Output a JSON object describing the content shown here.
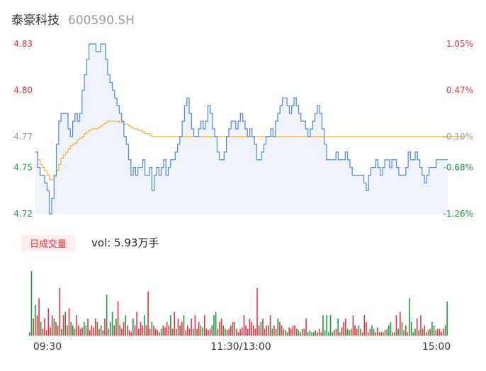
{
  "header": {
    "name": "泰豪科技",
    "code": "600590.SH"
  },
  "volume_panel": {
    "tag": "日成交量",
    "label": "vol: 5.93万手"
  },
  "colors": {
    "price": "#4a86e8",
    "avg": "#f0b33c",
    "up": "#e5323e",
    "down": "#1a9a3a",
    "neutral": "#999999",
    "grid": "#f0f3fa"
  },
  "chart_data": [
    {
      "type": "line",
      "title": "",
      "ylim": [
        4.72,
        4.83
      ],
      "y_ticks_left": [
        "4.83",
        "4.80",
        "4.77",
        "4.75",
        "4.72"
      ],
      "y_ticks_right": [
        "1.05%",
        "0.47%",
        "-0.10%",
        "-0.68%",
        "-1.26%"
      ],
      "x_ticks": [
        "09:30",
        "11:30/13:00",
        "15:00"
      ],
      "series": [
        {
          "values": [
            4.76,
            4.75,
            4.745,
            4.745,
            4.74,
            4.735,
            4.72,
            4.73,
            4.745,
            4.765,
            4.78,
            4.785,
            4.785,
            4.785,
            4.775,
            4.77,
            4.78,
            4.785,
            4.78,
            4.785,
            4.8,
            4.81,
            4.82,
            4.83,
            4.83,
            4.83,
            4.825,
            4.825,
            4.83,
            4.83,
            4.82,
            4.81,
            4.805,
            4.8,
            4.795,
            4.79,
            4.785,
            4.78,
            4.77,
            4.765,
            4.755,
            4.745,
            4.75,
            4.745,
            4.75,
            4.75,
            4.755,
            4.745,
            4.745,
            4.75,
            4.735,
            4.745,
            4.75,
            4.745,
            4.75,
            4.755,
            4.745,
            4.75,
            4.755,
            4.755,
            4.76,
            4.765,
            4.77,
            4.78,
            4.79,
            4.795,
            4.785,
            4.775,
            4.77,
            4.77,
            4.775,
            4.78,
            4.775,
            4.78,
            4.79,
            4.785,
            4.775,
            4.77,
            4.76,
            4.755,
            4.755,
            4.76,
            4.77,
            4.775,
            4.78,
            4.78,
            4.775,
            4.78,
            4.785,
            4.78,
            4.775,
            4.77,
            4.775,
            4.77,
            4.765,
            4.755,
            4.755,
            4.76,
            4.765,
            4.77,
            4.77,
            4.775,
            4.77,
            4.78,
            4.785,
            4.79,
            4.795,
            4.795,
            4.79,
            4.785,
            4.79,
            4.795,
            4.79,
            4.785,
            4.78,
            4.78,
            4.775,
            4.77,
            4.775,
            4.78,
            4.785,
            4.79,
            4.785,
            4.775,
            4.765,
            4.755,
            4.755,
            4.755,
            4.755,
            4.76,
            4.755,
            4.755,
            4.755,
            4.76,
            4.755,
            4.75,
            4.745,
            4.745,
            4.745,
            4.745,
            4.745,
            4.74,
            4.735,
            4.745,
            4.75,
            4.75,
            4.755,
            4.75,
            4.745,
            4.75,
            4.755,
            4.755,
            4.75,
            4.755,
            4.755,
            4.75,
            4.745,
            4.745,
            4.745,
            4.75,
            4.76,
            4.755,
            4.755,
            4.76,
            4.755,
            4.75,
            4.745,
            4.74,
            4.745,
            4.75,
            4.75,
            4.75,
            4.755,
            4.755,
            4.755,
            4.755,
            4.755,
            4.755
          ]
        },
        {
          "values": [
            4.76,
            4.755,
            4.752,
            4.75,
            4.748,
            4.745,
            4.742,
            4.742,
            4.744,
            4.748,
            4.752,
            4.756,
            4.758,
            4.76,
            4.762,
            4.764,
            4.765,
            4.766,
            4.768,
            4.769,
            4.77,
            4.772,
            4.773,
            4.774,
            4.775,
            4.775,
            4.775,
            4.776,
            4.777,
            4.778,
            4.779,
            4.78,
            4.78,
            4.78,
            4.78,
            4.78,
            4.779,
            4.779,
            4.778,
            4.778,
            4.777,
            4.776,
            4.775,
            4.775,
            4.774,
            4.774,
            4.773,
            4.772,
            4.772,
            4.771,
            4.77,
            4.77,
            4.77,
            4.77,
            4.77,
            4.77,
            4.77,
            4.77,
            4.77,
            4.77,
            4.77,
            4.77,
            4.77,
            4.77,
            4.77,
            4.77,
            4.77,
            4.77,
            4.77,
            4.77,
            4.77,
            4.77,
            4.77,
            4.77,
            4.77,
            4.77,
            4.77,
            4.77,
            4.77,
            4.77,
            4.77,
            4.77,
            4.77,
            4.77,
            4.77,
            4.77,
            4.77,
            4.77,
            4.77,
            4.77,
            4.77,
            4.77,
            4.77,
            4.77,
            4.77,
            4.77,
            4.77,
            4.77,
            4.77,
            4.77,
            4.77,
            4.77,
            4.77,
            4.77,
            4.77,
            4.77,
            4.77,
            4.77,
            4.77,
            4.77,
            4.77,
            4.77,
            4.77,
            4.77,
            4.77,
            4.77,
            4.77,
            4.77,
            4.77,
            4.77,
            4.77,
            4.77,
            4.77,
            4.77,
            4.77,
            4.77,
            4.77,
            4.77,
            4.77,
            4.77,
            4.77,
            4.77,
            4.77,
            4.77,
            4.77,
            4.77,
            4.77,
            4.77,
            4.77,
            4.77,
            4.77,
            4.77,
            4.77,
            4.77,
            4.77,
            4.77,
            4.77,
            4.77,
            4.77,
            4.77,
            4.77,
            4.77,
            4.77,
            4.77,
            4.77,
            4.77,
            4.77,
            4.77,
            4.77,
            4.77,
            4.77,
            4.77,
            4.77,
            4.77,
            4.77,
            4.77,
            4.77,
            4.77,
            4.77,
            4.77,
            4.77,
            4.77,
            4.77,
            4.77,
            4.77,
            4.77,
            4.77,
            4.77,
            4.77,
            4.77,
            4.77,
            4.77,
            4.77,
            4.77,
            4.77,
            4.77
          ]
        }
      ]
    },
    {
      "type": "bar",
      "title": "",
      "values": [
        5,
        95,
        25,
        45,
        30,
        55,
        20,
        10,
        25,
        8,
        40,
        12,
        30,
        25,
        20,
        15,
        70,
        10,
        30,
        35,
        15,
        40,
        20,
        15,
        10,
        30,
        15,
        10,
        12,
        20,
        15,
        25,
        8,
        15,
        12,
        25,
        20,
        10,
        15,
        8,
        25,
        60,
        10,
        20,
        35,
        15,
        25,
        50,
        15,
        10,
        20,
        30,
        15,
        8,
        5,
        25,
        15,
        35,
        10,
        20,
        15,
        30,
        15,
        65,
        10,
        20,
        15,
        10,
        8,
        5,
        10,
        15,
        12,
        20,
        15,
        30,
        10,
        35,
        10,
        25,
        15,
        20,
        30,
        8,
        15,
        10,
        25,
        10,
        30,
        10,
        20,
        15,
        12,
        30,
        10,
        8,
        10,
        15,
        30,
        35,
        10,
        20,
        25,
        15,
        10,
        8,
        10,
        15,
        20,
        20,
        10,
        5,
        10,
        12,
        30,
        15,
        10,
        25,
        20,
        15,
        10,
        70,
        15,
        20,
        25,
        10,
        15,
        15,
        30,
        10,
        15,
        10,
        25,
        20,
        15,
        10,
        8,
        5,
        12,
        10,
        15,
        15,
        10,
        8,
        5,
        10,
        10,
        25,
        5,
        8,
        5,
        5,
        8,
        5,
        10,
        5,
        30,
        8,
        30,
        5,
        30,
        5,
        8,
        10,
        25,
        5,
        12,
        20,
        25,
        10,
        8,
        10,
        30,
        15,
        10,
        15,
        10,
        5,
        30,
        20,
        5,
        10,
        15,
        10,
        5,
        12,
        5,
        5,
        5,
        8,
        10,
        15,
        20,
        5,
        5,
        30,
        10,
        35,
        20,
        8,
        15,
        5,
        55,
        20,
        5,
        10,
        25,
        8,
        30,
        10,
        15,
        5,
        8,
        10,
        20,
        15,
        8,
        10,
        10,
        5,
        10,
        15,
        50
      ],
      "colors": [
        "g",
        "g",
        "r",
        "g",
        "r",
        "r",
        "g",
        "r",
        "r",
        "r",
        "r",
        "r",
        "r",
        "g",
        "r",
        "r",
        "r",
        "g",
        "r",
        "g",
        "r",
        "r",
        "g",
        "g",
        "r",
        "r",
        "r",
        "r",
        "r",
        "g",
        "g",
        "r",
        "r",
        "r",
        "r",
        "r",
        "g",
        "r",
        "g",
        "r",
        "r",
        "g",
        "r",
        "g",
        "g",
        "r",
        "g",
        "r",
        "r",
        "r",
        "r",
        "g",
        "r",
        "r",
        "r",
        "g",
        "r",
        "r",
        "r",
        "r",
        "r",
        "g",
        "r",
        "r",
        "r",
        "g",
        "r",
        "r",
        "r",
        "g",
        "g",
        "r",
        "r",
        "r",
        "r",
        "g",
        "r",
        "r",
        "g",
        "r",
        "r",
        "r",
        "g",
        "r",
        "r",
        "r",
        "r",
        "g",
        "r",
        "r",
        "r",
        "g",
        "g",
        "r",
        "r",
        "r",
        "r",
        "g",
        "g",
        "g",
        "r",
        "r",
        "r",
        "g",
        "g",
        "r",
        "r",
        "r",
        "r",
        "g",
        "r",
        "r",
        "r",
        "r",
        "r",
        "r",
        "r",
        "r",
        "r",
        "r",
        "r",
        "r",
        "r",
        "g",
        "r",
        "r",
        "r",
        "g",
        "r",
        "g",
        "r",
        "r",
        "g",
        "r",
        "r",
        "g",
        "r",
        "g",
        "r",
        "r",
        "r",
        "r",
        "g",
        "g",
        "r",
        "g",
        "r",
        "r",
        "g",
        "g",
        "g",
        "g",
        "r",
        "g",
        "r",
        "r",
        "g",
        "g",
        "g",
        "g",
        "g",
        "g",
        "r",
        "r",
        "g",
        "g",
        "r",
        "r",
        "r",
        "g",
        "g",
        "r",
        "r",
        "r",
        "r",
        "g",
        "r",
        "g",
        "r",
        "r",
        "g",
        "r",
        "g",
        "g",
        "r",
        "r",
        "g",
        "r",
        "g",
        "r",
        "g",
        "g",
        "g",
        "r",
        "g",
        "r",
        "g",
        "r",
        "g",
        "g",
        "r",
        "r",
        "g",
        "g",
        "g",
        "g",
        "r",
        "r",
        "r",
        "g",
        "r",
        "r",
        "g",
        "r",
        "g",
        "g",
        "r",
        "r",
        "r",
        "r",
        "r",
        "g",
        "g",
        "r",
        "g",
        "g"
      ]
    }
  ]
}
